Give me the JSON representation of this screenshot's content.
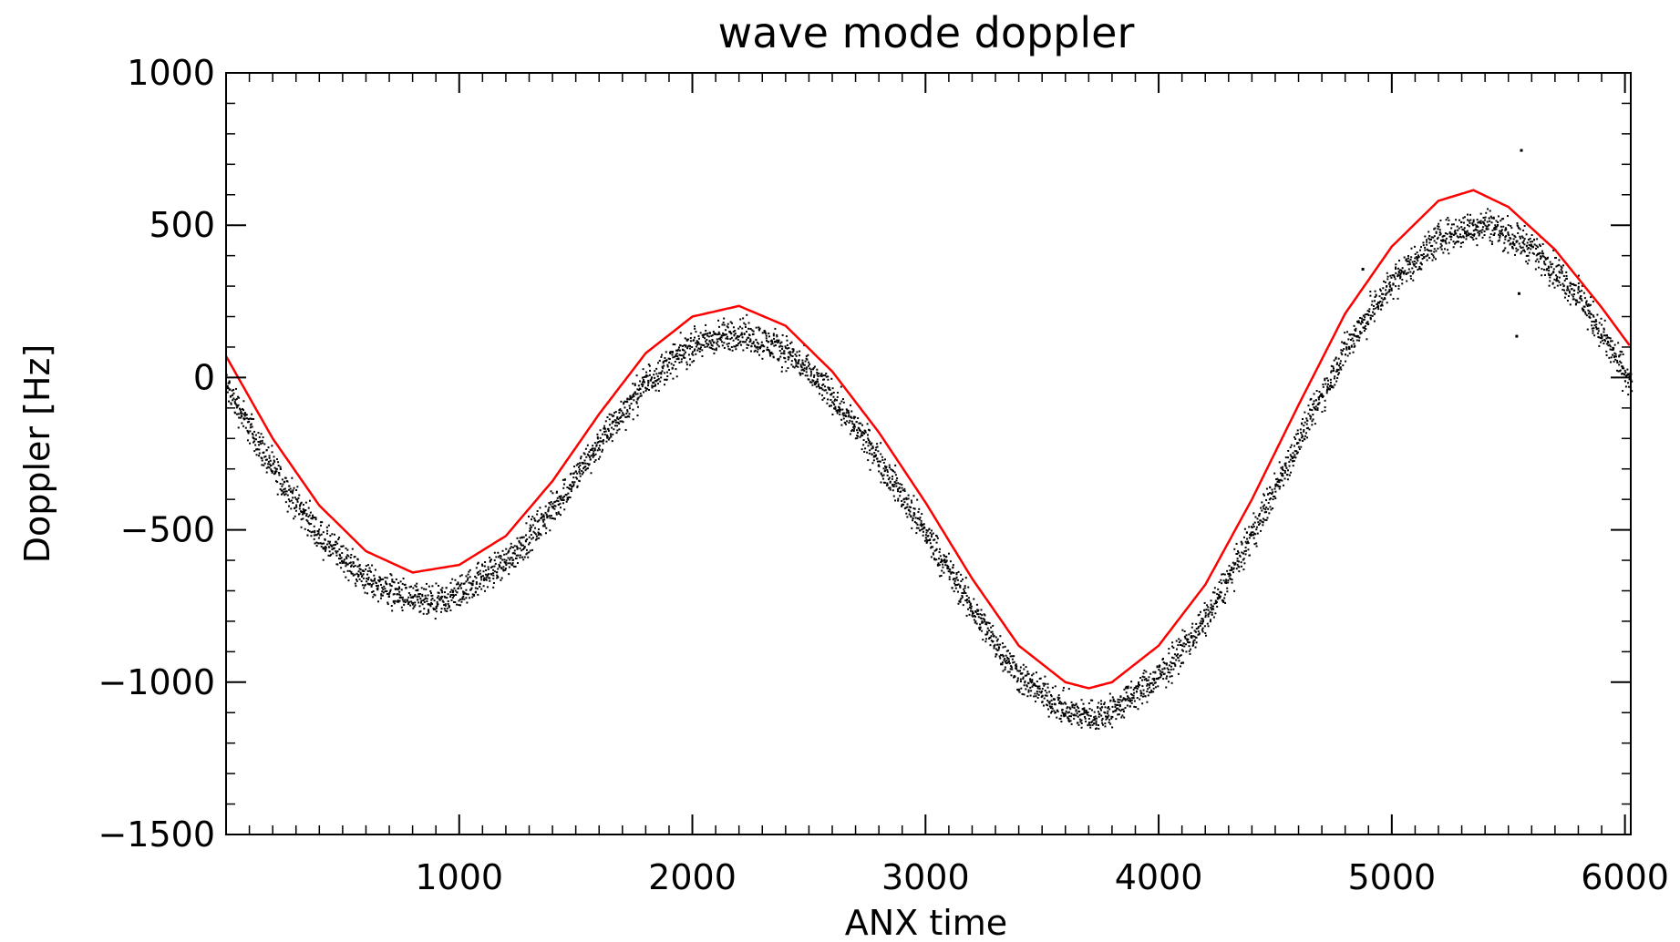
{
  "chart_data": {
    "type": "scatter",
    "title": "wave mode doppler",
    "xlabel": "ANX time",
    "ylabel": "Doppler [Hz]",
    "xlim": [
      0,
      6025
    ],
    "ylim": [
      -1500,
      1000
    ],
    "x_ticks": [
      1000,
      2000,
      3000,
      4000,
      5000,
      6000
    ],
    "x_tick_labels": [
      "1000",
      "2000",
      "3000",
      "4000",
      "5000",
      "6000"
    ],
    "y_ticks": [
      1000,
      500,
      0,
      -500,
      -1000,
      -1500
    ],
    "y_tick_labels": [
      "1000",
      "500",
      "0",
      "−500",
      "−1000",
      "−1500"
    ],
    "grid": false,
    "legend": "none",
    "series": [
      {
        "kind": "line",
        "color": "#ff0000",
        "x": [
          0,
          200,
          400,
          600,
          800,
          1000,
          1200,
          1400,
          1600,
          1800,
          2000,
          2200,
          2400,
          2600,
          2800,
          3000,
          3200,
          3400,
          3600,
          3700,
          3800,
          4000,
          4200,
          4400,
          4600,
          4800,
          5000,
          5200,
          5350,
          5500,
          5700,
          5900,
          6025
        ],
        "y": [
          70,
          -200,
          -420,
          -570,
          -640,
          -615,
          -520,
          -340,
          -120,
          80,
          200,
          235,
          170,
          20,
          -180,
          -410,
          -660,
          -880,
          -1000,
          -1020,
          -1000,
          -880,
          -680,
          -400,
          -90,
          210,
          430,
          580,
          615,
          560,
          420,
          230,
          100
        ]
      },
      {
        "kind": "scatter",
        "color": "#000000",
        "x": [
          0,
          200,
          400,
          600,
          800,
          900,
          1000,
          1200,
          1400,
          1600,
          1800,
          2000,
          2200,
          2400,
          2600,
          2800,
          3000,
          3200,
          3400,
          3600,
          3700,
          3800,
          4000,
          4200,
          4400,
          4600,
          4800,
          5000,
          5200,
          5400,
          5600,
          5800,
          6025
        ],
        "y": [
          -30,
          -300,
          -520,
          -660,
          -730,
          -740,
          -700,
          -600,
          -430,
          -210,
          -10,
          110,
          150,
          90,
          -60,
          -270,
          -510,
          -760,
          -980,
          -1090,
          -1110,
          -1090,
          -980,
          -790,
          -510,
          -200,
          100,
          320,
          460,
          510,
          430,
          270,
          -20
        ],
        "spread_hz": 50
      }
    ],
    "outliers": {
      "x": [
        5550,
        5540,
        5530,
        4870
      ],
      "y": [
        750,
        280,
        140,
        360
      ]
    }
  }
}
